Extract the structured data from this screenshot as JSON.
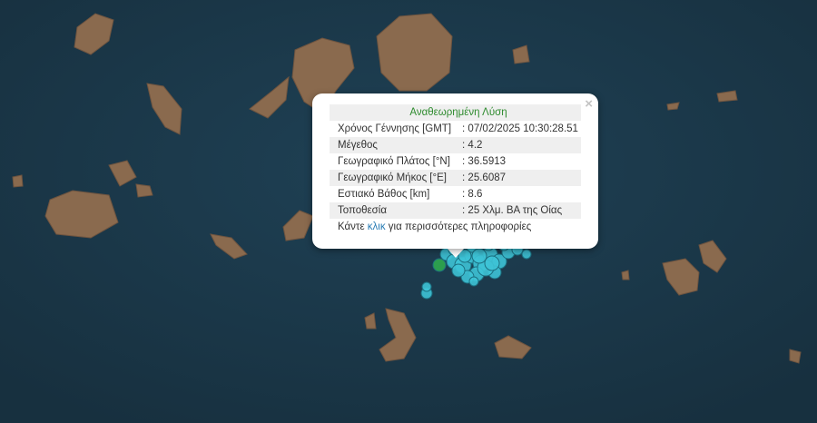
{
  "colors": {
    "sea": "#1d3a4f",
    "land": "#8a6a4e",
    "quake": "#3ec3d6",
    "quake_latest": "#2fa84f",
    "title": "#2e8b2e",
    "link": "#2a7db5"
  },
  "popup": {
    "close_icon": "close-icon",
    "close_label": "×",
    "title": "Αναθεωρημένη Λύση",
    "rows": [
      {
        "label": "Χρόνος Γέννησης [GMT]",
        "value": ": 07/02/2025 10:30:28.51"
      },
      {
        "label": "Μέγεθος",
        "value": ": 4.2"
      },
      {
        "label": "Γεωγραφικό Πλάτος [°N]",
        "value": ": 36.5913"
      },
      {
        "label": "Γεωγραφικό Μήκος [°E]",
        "value": ": 25.6087"
      },
      {
        "label": "Εστιακό Βάθος [km]",
        "value": ": 8.6"
      },
      {
        "label": "Τοποθεσία",
        "value": ": 25 Χλμ. ΒΑ της Οίας"
      }
    ],
    "more_prefix": "Κάντε ",
    "more_link": "κλικ",
    "more_suffix": " για περισσότερες πληροφορίες"
  }
}
